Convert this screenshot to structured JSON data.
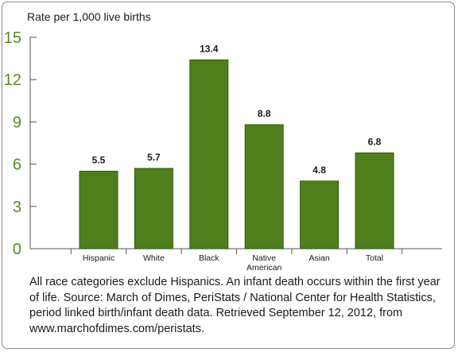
{
  "chart_data": {
    "type": "bar",
    "ylabel": "Rate per 1,000 live births",
    "categories": [
      [
        "Hispanic"
      ],
      [
        "White"
      ],
      [
        "Black"
      ],
      [
        "Native",
        "American"
      ],
      [
        "Asian"
      ],
      [
        "Total"
      ]
    ],
    "values": [
      5.5,
      5.7,
      13.4,
      8.8,
      4.8,
      6.8
    ],
    "value_labels": [
      "5.5",
      "5.7",
      "13.4",
      "8.8",
      "4.8",
      "6.8"
    ],
    "ylim": [
      0,
      15
    ],
    "yticks": [
      0,
      3,
      6,
      9,
      12,
      15
    ],
    "grid": false,
    "colors": {
      "bar": "#4f7f1c",
      "bar_edge": "#2f5a0a",
      "axis_text": "#5a8a22",
      "axis": "#555555"
    }
  },
  "caption": "All race categories exclude Hispanics. An infant death occurs within the first year of life. Source: March of Dimes, PeriStats / National Center for Health Statistics, period linked birth/infant death data. Retrieved September 12, 2012, from www.marchofdimes.com/peristats."
}
